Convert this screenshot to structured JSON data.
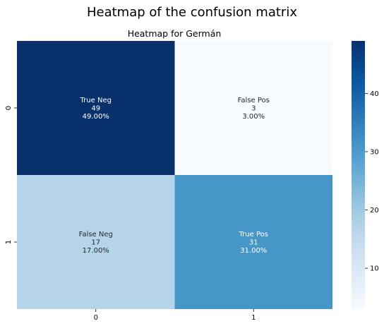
{
  "figure_title": "Heatmap of the confusion matrix",
  "chart_data": {
    "type": "heatmap",
    "title": "Heatmap for Germán",
    "rows": [
      "0",
      "1"
    ],
    "columns": [
      "0",
      "1"
    ],
    "values": [
      [
        49,
        3
      ],
      [
        17,
        31
      ]
    ],
    "cell_labels": [
      [
        [
          "True Neg",
          "49",
          "49.00%"
        ],
        [
          "False Pos",
          "3",
          "3.00%"
        ]
      ],
      [
        [
          "False Neg",
          "17",
          "17.00%"
        ],
        [
          "True Pos",
          "31",
          "31.00%"
        ]
      ]
    ],
    "colormap": "Blues",
    "color_range": [
      3,
      49
    ],
    "colorbar_ticks": [
      10,
      20,
      30,
      40
    ],
    "xlabel": "",
    "ylabel": "",
    "grid": false
  },
  "colors": {
    "blues_low": "#f7fbff",
    "blues_high": "#08306b",
    "dark_text": "#262626",
    "light_text": "#ffffff"
  }
}
